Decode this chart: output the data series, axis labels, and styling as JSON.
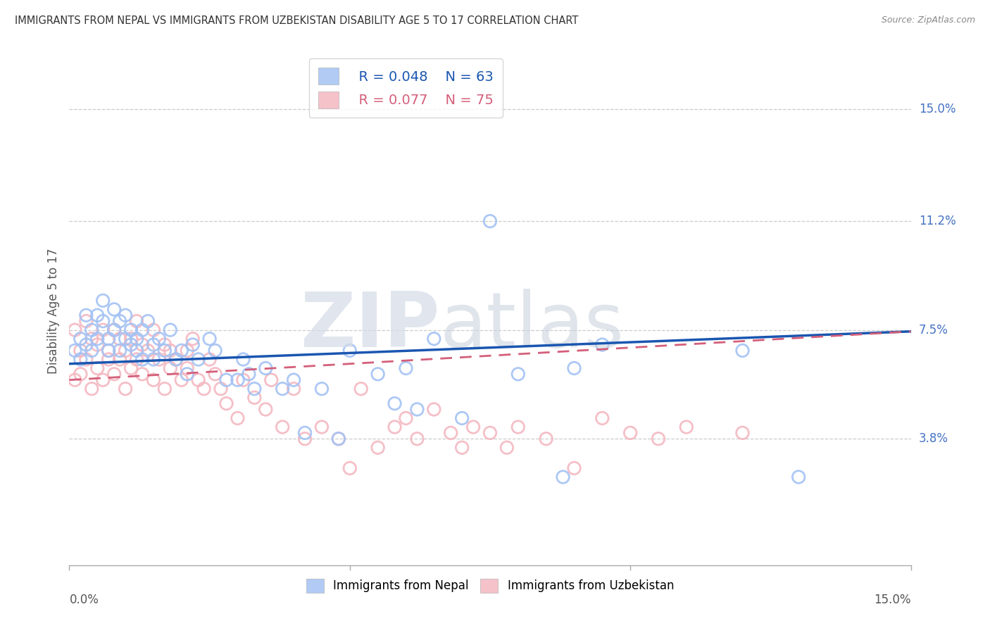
{
  "title": "IMMIGRANTS FROM NEPAL VS IMMIGRANTS FROM UZBEKISTAN DISABILITY AGE 5 TO 17 CORRELATION CHART",
  "source": "Source: ZipAtlas.com",
  "ylabel": "Disability Age 5 to 17",
  "xlim": [
    0.0,
    0.15
  ],
  "ylim": [
    -0.005,
    0.168
  ],
  "nepal_R": 0.048,
  "nepal_N": 63,
  "uzbekistan_R": 0.077,
  "uzbekistan_N": 75,
  "nepal_color": "#a4c2f4",
  "uzbekistan_color": "#f4b8c1",
  "nepal_line_color": "#1a56b0",
  "uzbekistan_line_color": "#d45f7a",
  "background_color": "#ffffff",
  "grid_color": "#cccccc",
  "right_ytick_values": [
    0.038,
    0.075,
    0.112,
    0.15
  ],
  "right_ytick_labels": [
    "3.8%",
    "7.5%",
    "11.2%",
    "15.0%"
  ],
  "nepal_line_y0": 0.0635,
  "nepal_line_y1": 0.0745,
  "uzbekistan_line_y0": 0.058,
  "uzbekistan_line_y1": 0.0745,
  "nepal_pts": [
    [
      0.001,
      0.068
    ],
    [
      0.002,
      0.065
    ],
    [
      0.002,
      0.072
    ],
    [
      0.003,
      0.07
    ],
    [
      0.003,
      0.08
    ],
    [
      0.004,
      0.068
    ],
    [
      0.004,
      0.075
    ],
    [
      0.005,
      0.072
    ],
    [
      0.005,
      0.08
    ],
    [
      0.006,
      0.085
    ],
    [
      0.006,
      0.078
    ],
    [
      0.007,
      0.072
    ],
    [
      0.007,
      0.068
    ],
    [
      0.008,
      0.082
    ],
    [
      0.008,
      0.075
    ],
    [
      0.009,
      0.068
    ],
    [
      0.009,
      0.078
    ],
    [
      0.01,
      0.072
    ],
    [
      0.01,
      0.08
    ],
    [
      0.011,
      0.07
    ],
    [
      0.011,
      0.075
    ],
    [
      0.012,
      0.068
    ],
    [
      0.012,
      0.072
    ],
    [
      0.013,
      0.075
    ],
    [
      0.013,
      0.065
    ],
    [
      0.014,
      0.078
    ],
    [
      0.015,
      0.07
    ],
    [
      0.015,
      0.065
    ],
    [
      0.016,
      0.072
    ],
    [
      0.017,
      0.068
    ],
    [
      0.018,
      0.075
    ],
    [
      0.019,
      0.065
    ],
    [
      0.02,
      0.068
    ],
    [
      0.021,
      0.06
    ],
    [
      0.022,
      0.07
    ],
    [
      0.023,
      0.065
    ],
    [
      0.025,
      0.072
    ],
    [
      0.026,
      0.068
    ],
    [
      0.028,
      0.058
    ],
    [
      0.03,
      0.058
    ],
    [
      0.031,
      0.065
    ],
    [
      0.032,
      0.06
    ],
    [
      0.033,
      0.055
    ],
    [
      0.035,
      0.062
    ],
    [
      0.038,
      0.055
    ],
    [
      0.04,
      0.058
    ],
    [
      0.042,
      0.04
    ],
    [
      0.045,
      0.055
    ],
    [
      0.048,
      0.038
    ],
    [
      0.05,
      0.068
    ],
    [
      0.055,
      0.06
    ],
    [
      0.058,
      0.05
    ],
    [
      0.06,
      0.062
    ],
    [
      0.062,
      0.048
    ],
    [
      0.065,
      0.072
    ],
    [
      0.07,
      0.045
    ],
    [
      0.075,
      0.112
    ],
    [
      0.08,
      0.06
    ],
    [
      0.088,
      0.025
    ],
    [
      0.09,
      0.062
    ],
    [
      0.095,
      0.07
    ],
    [
      0.12,
      0.068
    ],
    [
      0.13,
      0.025
    ]
  ],
  "uzbekistan_pts": [
    [
      0.001,
      0.075
    ],
    [
      0.001,
      0.058
    ],
    [
      0.002,
      0.068
    ],
    [
      0.002,
      0.06
    ],
    [
      0.003,
      0.078
    ],
    [
      0.003,
      0.065
    ],
    [
      0.004,
      0.072
    ],
    [
      0.004,
      0.055
    ],
    [
      0.005,
      0.07
    ],
    [
      0.005,
      0.062
    ],
    [
      0.006,
      0.075
    ],
    [
      0.006,
      0.058
    ],
    [
      0.007,
      0.068
    ],
    [
      0.007,
      0.065
    ],
    [
      0.008,
      0.075
    ],
    [
      0.008,
      0.06
    ],
    [
      0.009,
      0.072
    ],
    [
      0.009,
      0.065
    ],
    [
      0.01,
      0.068
    ],
    [
      0.01,
      0.055
    ],
    [
      0.011,
      0.072
    ],
    [
      0.011,
      0.062
    ],
    [
      0.012,
      0.078
    ],
    [
      0.012,
      0.065
    ],
    [
      0.013,
      0.07
    ],
    [
      0.013,
      0.06
    ],
    [
      0.014,
      0.068
    ],
    [
      0.015,
      0.075
    ],
    [
      0.015,
      0.058
    ],
    [
      0.016,
      0.065
    ],
    [
      0.017,
      0.07
    ],
    [
      0.017,
      0.055
    ],
    [
      0.018,
      0.068
    ],
    [
      0.018,
      0.062
    ],
    [
      0.019,
      0.065
    ],
    [
      0.02,
      0.058
    ],
    [
      0.021,
      0.068
    ],
    [
      0.021,
      0.062
    ],
    [
      0.022,
      0.072
    ],
    [
      0.023,
      0.058
    ],
    [
      0.024,
      0.055
    ],
    [
      0.025,
      0.065
    ],
    [
      0.026,
      0.06
    ],
    [
      0.027,
      0.055
    ],
    [
      0.028,
      0.05
    ],
    [
      0.03,
      0.045
    ],
    [
      0.031,
      0.058
    ],
    [
      0.033,
      0.052
    ],
    [
      0.035,
      0.048
    ],
    [
      0.036,
      0.058
    ],
    [
      0.038,
      0.042
    ],
    [
      0.04,
      0.055
    ],
    [
      0.042,
      0.038
    ],
    [
      0.045,
      0.042
    ],
    [
      0.048,
      0.038
    ],
    [
      0.05,
      0.028
    ],
    [
      0.052,
      0.055
    ],
    [
      0.055,
      0.035
    ],
    [
      0.058,
      0.042
    ],
    [
      0.06,
      0.045
    ],
    [
      0.062,
      0.038
    ],
    [
      0.065,
      0.048
    ],
    [
      0.068,
      0.04
    ],
    [
      0.07,
      0.035
    ],
    [
      0.072,
      0.042
    ],
    [
      0.075,
      0.04
    ],
    [
      0.078,
      0.035
    ],
    [
      0.08,
      0.042
    ],
    [
      0.085,
      0.038
    ],
    [
      0.09,
      0.028
    ],
    [
      0.095,
      0.045
    ],
    [
      0.1,
      0.04
    ],
    [
      0.105,
      0.038
    ],
    [
      0.11,
      0.042
    ],
    [
      0.12,
      0.04
    ]
  ]
}
